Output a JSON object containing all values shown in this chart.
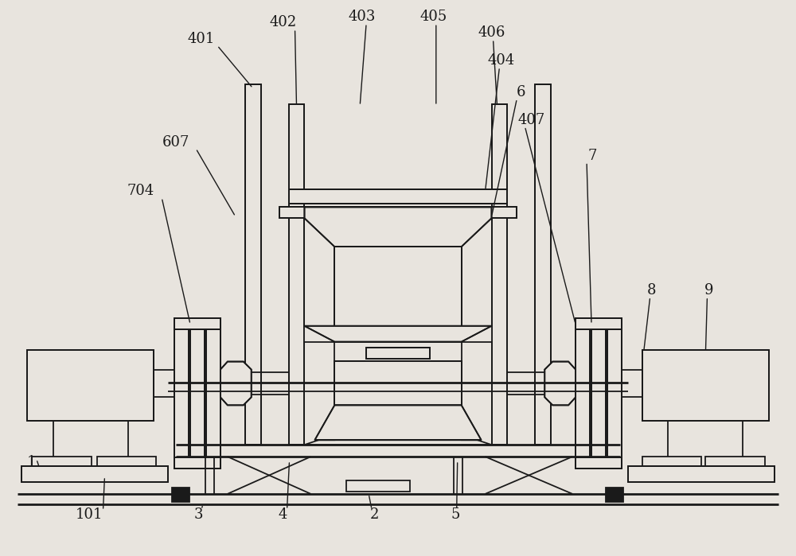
{
  "bg_color": "#e8e4de",
  "line_color": "#1a1a1a",
  "lw": 1.3,
  "lw2": 2.0,
  "fig_w": 10.0,
  "fig_h": 6.99
}
